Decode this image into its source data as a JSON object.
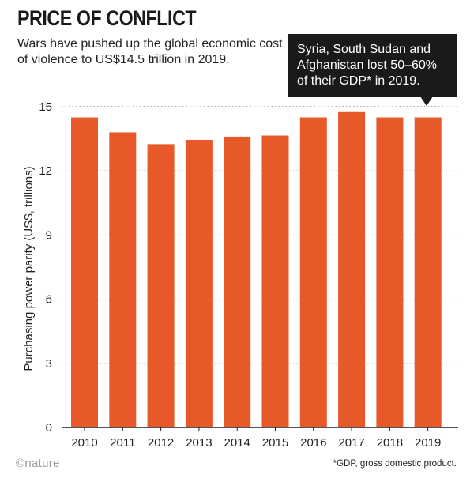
{
  "header": {
    "title": "PRICE OF CONFLICT",
    "subtitle": "Wars have pushed up the global economic cost of violence to US$14.5 trillion in 2019."
  },
  "callout": {
    "text": "Syria, South Sudan and Afghanistan lost 50–60% of their GDP* in 2019."
  },
  "footer": {
    "logo": "©nature",
    "footnote": "*GDP, gross domestic product."
  },
  "colors": {
    "bar": "#e8592a",
    "grid": "#555555",
    "callout_bg": "#1a1a1a"
  },
  "chart_data": {
    "type": "bar",
    "title": "PRICE OF CONFLICT",
    "xlabel": "",
    "ylabel": "Purchasing power parity (US$, trillions)",
    "categories": [
      "2010",
      "2011",
      "2012",
      "2013",
      "2014",
      "2015",
      "2016",
      "2017",
      "2018",
      "2019"
    ],
    "values": [
      14.5,
      13.8,
      13.25,
      13.45,
      13.6,
      13.65,
      14.5,
      14.75,
      14.5,
      14.5
    ],
    "ylim": [
      0,
      15
    ],
    "yticks": [
      0,
      3,
      6,
      9,
      12,
      15
    ],
    "grid": true,
    "grid_style": "dotted"
  }
}
